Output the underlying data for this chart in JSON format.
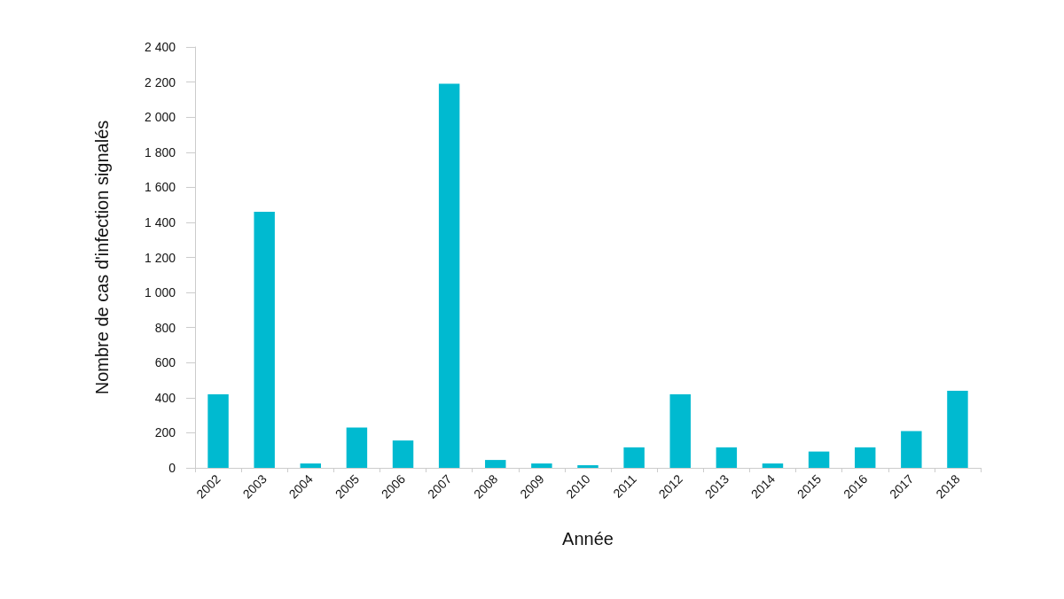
{
  "chart_data": {
    "type": "bar",
    "xlabel": "Année",
    "ylabel": "Nombre de cas d'infection signalés",
    "categories": [
      "2002",
      "2003",
      "2004",
      "2005",
      "2006",
      "2007",
      "2008",
      "2009",
      "2010",
      "2011",
      "2012",
      "2013",
      "2014",
      "2015",
      "2016",
      "2017",
      "2018"
    ],
    "values": [
      420,
      1460,
      25,
      230,
      156,
      2190,
      45,
      25,
      15,
      117,
      420,
      117,
      25,
      93,
      117,
      210,
      440
    ],
    "color": "#00bad0",
    "ylim": [
      0,
      2400
    ],
    "yticks": [
      0,
      200,
      400,
      600,
      800,
      {
        "value": 1000,
        "label": "1 000"
      },
      {
        "value": 1200,
        "label": "1 200"
      },
      {
        "value": 1400,
        "label": "1 400"
      },
      {
        "value": 1600,
        "label": "1 600"
      },
      {
        "value": 1800,
        "label": "1 800"
      },
      {
        "value": 2000,
        "label": "2 000"
      },
      {
        "value": 2200,
        "label": "2 200"
      },
      {
        "value": 2400,
        "label": "2 400"
      }
    ],
    "grid": false
  }
}
